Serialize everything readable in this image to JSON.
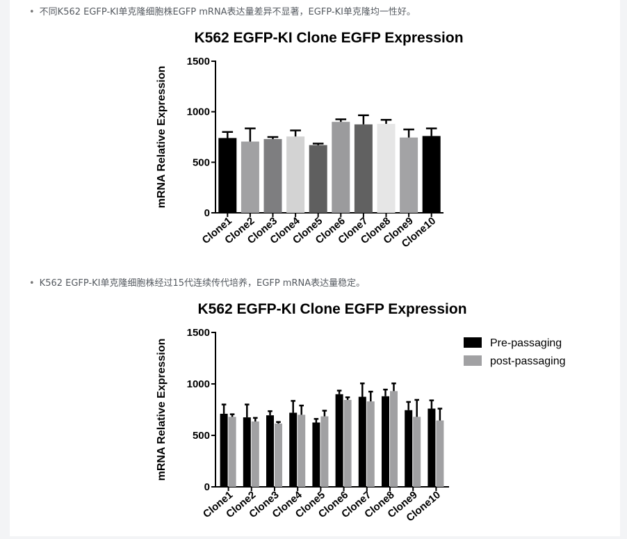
{
  "notes": [
    "不同K562 EGFP-KI单克隆细胞株EGFP mRNA表达量差异不显著，EGFP-KI单克隆均一性好。",
    "K562 EGFP-KI单克隆细胞株经过15代连续传代培养，EGFP mRNA表达量稳定。"
  ],
  "chart_data": [
    {
      "type": "bar",
      "title": "K562 EGFP-KI Clone EGFP Expression",
      "xlabel": "",
      "ylabel": "mRNA Relative Expression",
      "ylim": [
        0,
        1500
      ],
      "yticks": [
        0,
        500,
        1000,
        1500
      ],
      "grid": false,
      "categories": [
        "Clone1",
        "Clone2",
        "Clone3",
        "Clone4",
        "Clone5",
        "Clone6",
        "Clone7",
        "Clone8",
        "Clone9",
        "Clone10"
      ],
      "values": [
        740,
        705,
        730,
        755,
        670,
        900,
        875,
        880,
        745,
        760
      ],
      "errors": [
        60,
        130,
        20,
        60,
        15,
        25,
        90,
        40,
        80,
        75
      ],
      "colors": [
        "#000000",
        "#a1a1a3",
        "#7e7e80",
        "#d3d3d3",
        "#5f5f5f",
        "#9b9b9d",
        "#616161",
        "#e6e6e6",
        "#a3a3a5",
        "#000000"
      ]
    },
    {
      "type": "bar",
      "title": "K562 EGFP-KI Clone EGFP Expression",
      "xlabel": "",
      "ylabel": "mRNA Relative Expression",
      "ylim": [
        0,
        1500
      ],
      "yticks": [
        0,
        500,
        1000,
        1500
      ],
      "grid": false,
      "legend": "top-right",
      "categories": [
        "Clone1",
        "Clone2",
        "Clone3",
        "Clone4",
        "Clone5",
        "Clone6",
        "Clone7",
        "Clone8",
        "Clone9",
        "Clone10"
      ],
      "series": [
        {
          "name": "Pre-passaging",
          "color": "#000000",
          "values": [
            710,
            675,
            695,
            720,
            625,
            900,
            875,
            880,
            745,
            760
          ],
          "errors": [
            90,
            125,
            40,
            115,
            35,
            35,
            130,
            65,
            80,
            80
          ]
        },
        {
          "name": "post-passaging",
          "color": "#a1a1a3",
          "values": [
            680,
            635,
            615,
            700,
            685,
            845,
            830,
            930,
            680,
            645
          ],
          "errors": [
            25,
            35,
            15,
            90,
            55,
            25,
            95,
            75,
            165,
            115
          ]
        }
      ]
    }
  ]
}
